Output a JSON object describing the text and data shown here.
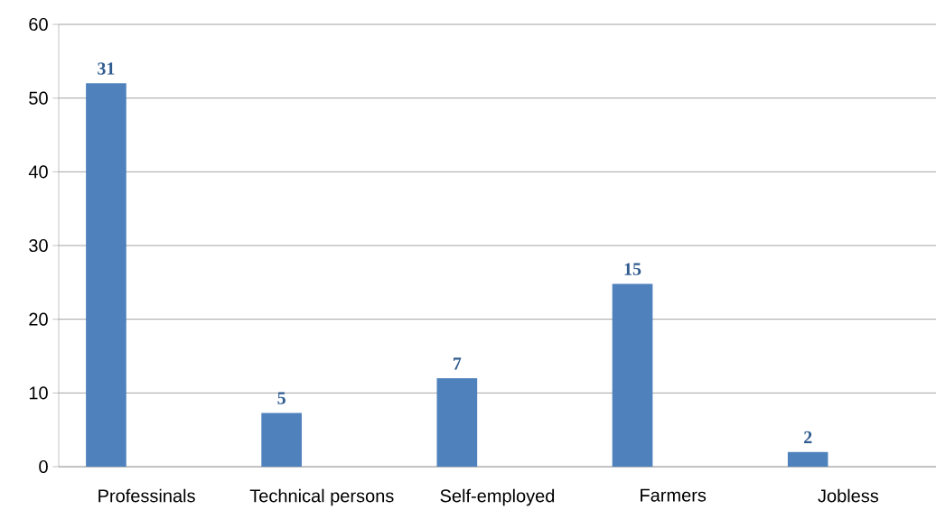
{
  "chart_data": {
    "type": "bar",
    "categories": [
      "Professinals",
      "Technical persons",
      "Self-employed",
      "Farmers",
      "Jobless"
    ],
    "values": [
      52,
      7.3,
      12,
      24.8,
      2
    ],
    "annotations": [
      "31",
      "5",
      "7",
      "15",
      "2"
    ],
    "color": "#4f81bd",
    "ylim": [
      0,
      60
    ],
    "yticks": [
      0,
      10,
      20,
      30,
      40,
      50,
      60
    ],
    "grid": "y"
  }
}
